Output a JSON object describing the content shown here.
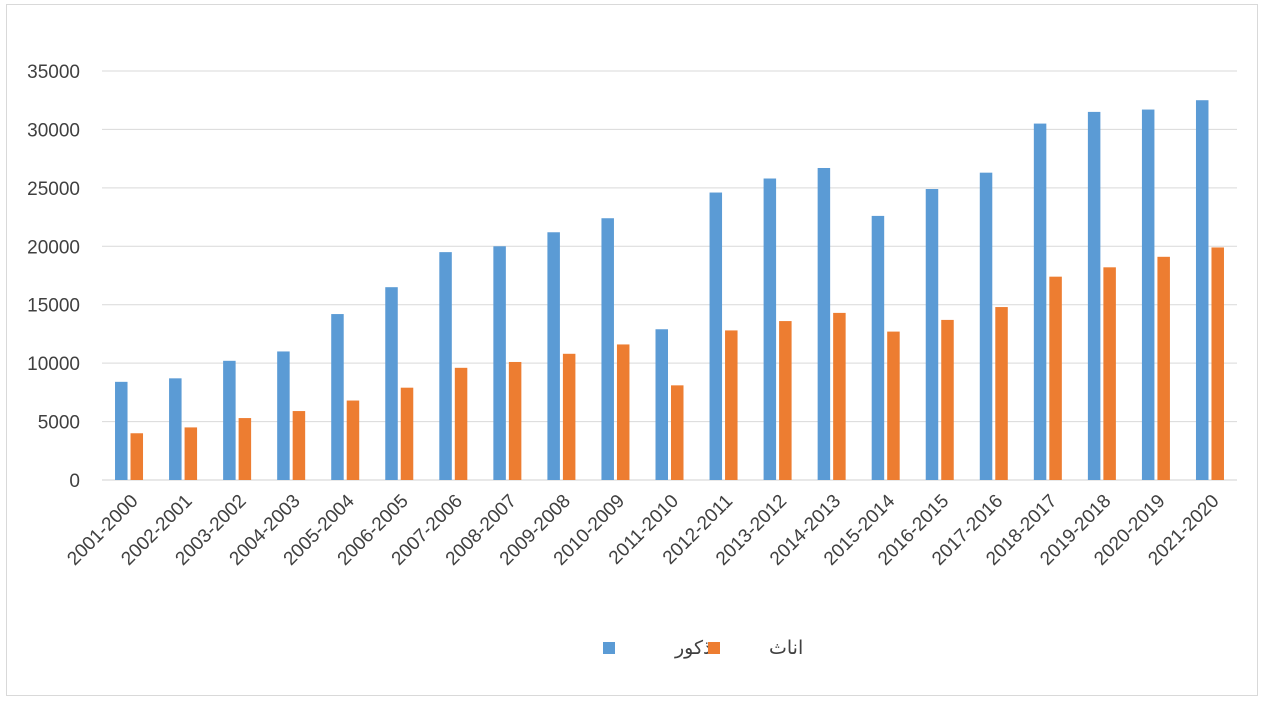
{
  "chart_data": {
    "type": "bar",
    "categories": [
      "2001-2000",
      "2002-2001",
      "2003-2002",
      "2004-2003",
      "2005-2004",
      "2006-2005",
      "2007-2006",
      "2008-2007",
      "2009-2008",
      "2010-2009",
      "2011-2010",
      "2012-2011",
      "2013-2012",
      "2014-2013",
      "2015-2014",
      "2016-2015",
      "2017-2016",
      "2018-2017",
      "2019-2018",
      "2020-2019",
      "2021-2020"
    ],
    "series": [
      {
        "name": "ذكور",
        "color": "#5b9bd5",
        "values": [
          8400,
          8700,
          10200,
          11000,
          14200,
          16500,
          19500,
          20000,
          21200,
          22400,
          12900,
          24600,
          25800,
          26700,
          22600,
          24900,
          26300,
          30500,
          31500,
          31700,
          32500
        ]
      },
      {
        "name": "اناث",
        "color": "#ed7d31",
        "values": [
          4000,
          4500,
          5300,
          5900,
          6800,
          7900,
          9600,
          10100,
          10800,
          11600,
          8100,
          12800,
          13600,
          14300,
          12700,
          13700,
          14800,
          17400,
          18200,
          19100,
          19900
        ]
      }
    ],
    "yticks": [
      "0",
      "5000",
      "10000",
      "15000",
      "20000",
      "25000",
      "30000",
      "35000"
    ],
    "ylim": [
      0,
      35000
    ],
    "grid": true,
    "legend_position": "bottom"
  }
}
